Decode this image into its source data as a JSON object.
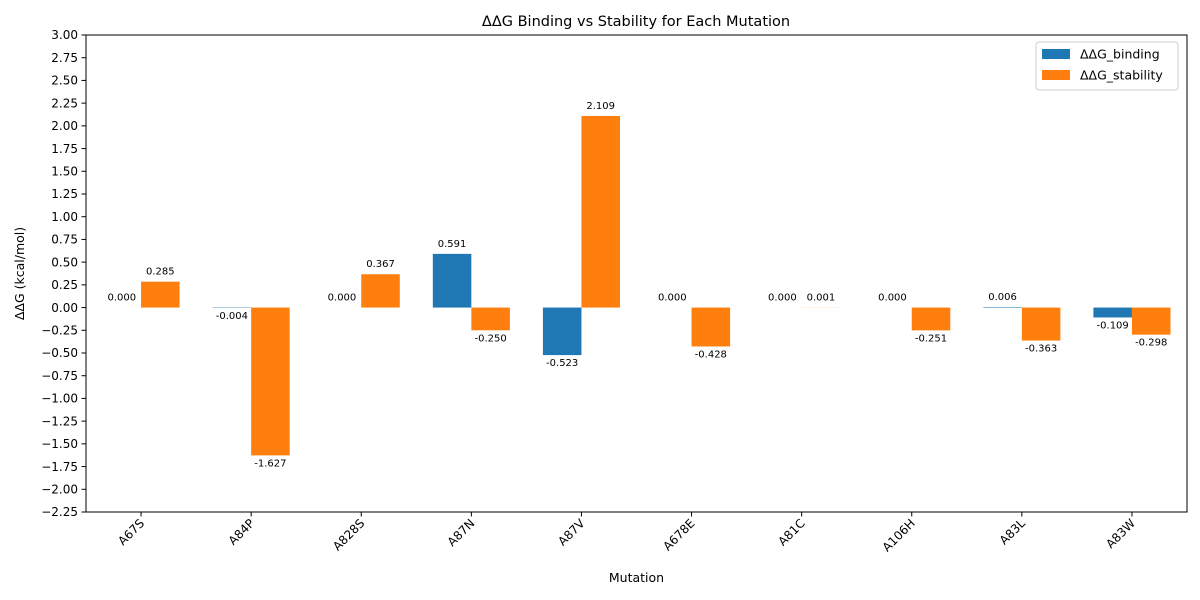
{
  "chart_data": {
    "type": "bar",
    "title": "ΔΔG Binding vs Stability for Each Mutation",
    "xlabel": "Mutation",
    "ylabel": "ΔΔG (kcal/mol)",
    "ylim": [
      -2.25,
      3.0
    ],
    "yticks": [
      "3.00",
      "2.75",
      "2.50",
      "2.25",
      "2.00",
      "1.75",
      "1.50",
      "1.25",
      "1.00",
      "0.75",
      "0.50",
      "0.25",
      "0.00",
      "−0.25",
      "−0.50",
      "−0.75",
      "−1.00",
      "−1.25",
      "−1.50",
      "−1.75",
      "−2.00",
      "−2.25"
    ],
    "ytick_values": [
      3.0,
      2.75,
      2.5,
      2.25,
      2.0,
      1.75,
      1.5,
      1.25,
      1.0,
      0.75,
      0.5,
      0.25,
      0.0,
      -0.25,
      -0.5,
      -0.75,
      -1.0,
      -1.25,
      -1.5,
      -1.75,
      -2.0,
      -2.25
    ],
    "categories": [
      "A67S",
      "A84P",
      "A828S",
      "A87N",
      "A87V",
      "A678E",
      "A81C",
      "A106H",
      "A83L",
      "A83W"
    ],
    "series": [
      {
        "name": "ΔΔG_binding",
        "color": "#1f77b4",
        "values": [
          0.0,
          -0.004,
          0.0,
          0.591,
          -0.523,
          0.0,
          0.0,
          0.0,
          0.006,
          -0.109
        ],
        "labels": [
          "0.000",
          "-0.004",
          "0.000",
          "0.591",
          "-0.523",
          "0.000",
          "0.000",
          "0.000",
          "0.006",
          "-0.109"
        ]
      },
      {
        "name": "ΔΔG_stability",
        "color": "#ff7f0e",
        "values": [
          0.285,
          -1.627,
          0.367,
          -0.25,
          2.109,
          -0.428,
          0.001,
          -0.251,
          -0.363,
          -0.298
        ],
        "labels": [
          "0.285",
          "-1.627",
          "0.367",
          "-0.250",
          "2.109",
          "-0.428",
          "0.001",
          "-0.251",
          "-0.363",
          "-0.298"
        ]
      }
    ],
    "legend_position": "top-right",
    "grid": false
  }
}
